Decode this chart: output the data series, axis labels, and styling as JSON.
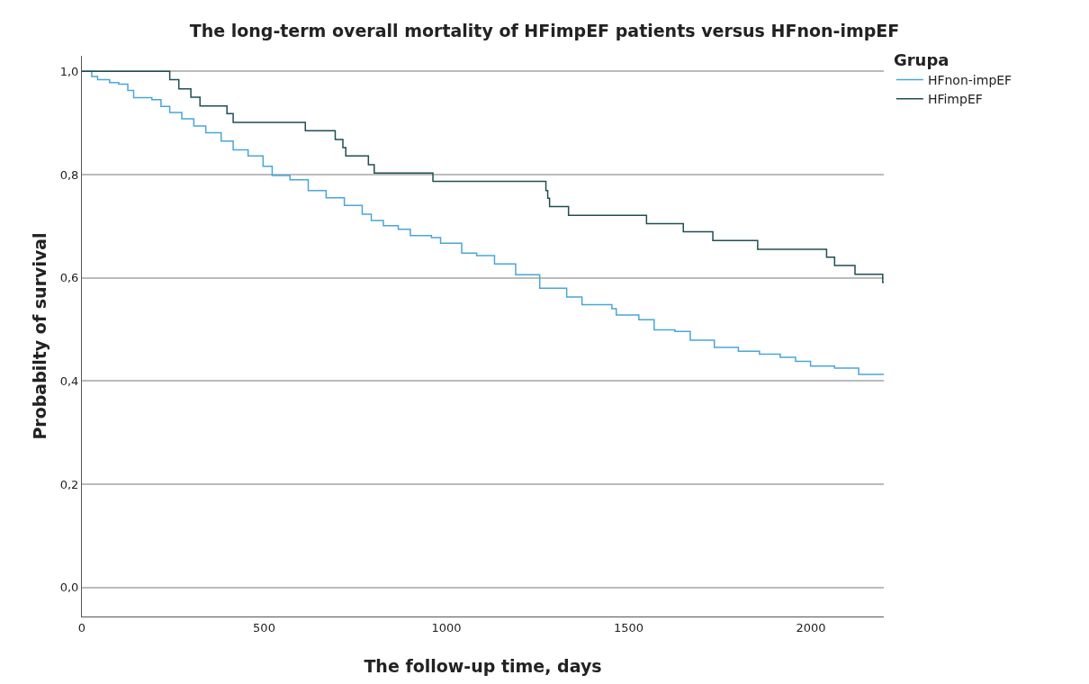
{
  "chart_data": {
    "type": "step",
    "title": "The long-term overall mortality of HFimpEF patients versus HFnon-impEF",
    "xlabel": "The follow-up time, days",
    "ylabel": "Probabilty of survival",
    "legend_title": "Grupa",
    "legend": "top right",
    "grid": "y",
    "marker": "none",
    "line_style": "solid",
    "xlim": [
      0,
      2200
    ],
    "xticks": [
      0,
      500,
      1000,
      1500,
      2000
    ],
    "ylim": [
      -0.056,
      1.03
    ],
    "yticks": [
      {
        "value": 0,
        "label": "0,0"
      },
      {
        "value": 0.2,
        "label": "0,2"
      },
      {
        "value": 0.4,
        "label": "0,4"
      },
      {
        "value": 0.6,
        "label": "0,6"
      },
      {
        "value": 0.8,
        "label": "0,8"
      },
      {
        "value": 1,
        "label": "1,0"
      }
    ],
    "series": [
      {
        "name": "HFnon-impEF",
        "color": "#4aa6d6",
        "x": [
          0,
          27,
          43,
          76,
          101,
          126,
          142,
          192,
          217,
          241,
          274,
          307,
          340,
          382,
          415,
          456,
          497,
          522,
          571,
          621,
          670,
          720,
          769,
          794,
          827,
          868,
          901,
          959,
          984,
          1042,
          1083,
          1132,
          1190,
          1256,
          1330,
          1372,
          1454,
          1466,
          1528,
          1570,
          1627,
          1669,
          1735,
          1801,
          1859,
          1916,
          1958,
          1999,
          2065,
          2131,
          2200
        ],
        "values": [
          1,
          0.99,
          0.984,
          0.978,
          0.975,
          0.963,
          0.949,
          0.945,
          0.932,
          0.92,
          0.908,
          0.894,
          0.881,
          0.865,
          0.848,
          0.836,
          0.816,
          0.798,
          0.79,
          0.769,
          0.755,
          0.74,
          0.723,
          0.711,
          0.701,
          0.694,
          0.682,
          0.678,
          0.667,
          0.648,
          0.643,
          0.627,
          0.606,
          0.58,
          0.563,
          0.548,
          0.54,
          0.528,
          0.519,
          0.499,
          0.496,
          0.479,
          0.465,
          0.458,
          0.452,
          0.446,
          0.438,
          0.429,
          0.425,
          0.413,
          0.413
        ]
      },
      {
        "name": "HFimpEF",
        "color": "#1f4f52",
        "x": [
          0,
          241,
          266,
          299,
          324,
          398,
          415,
          613,
          695,
          716,
          724,
          786,
          802,
          963,
          1273,
          1278,
          1283,
          1335,
          1549,
          1650,
          1731,
          1854,
          2043,
          2065,
          2121,
          2197,
          2200
        ],
        "values": [
          1,
          0.984,
          0.966,
          0.95,
          0.933,
          0.918,
          0.901,
          0.885,
          0.868,
          0.852,
          0.836,
          0.819,
          0.803,
          0.787,
          0.769,
          0.754,
          0.738,
          0.721,
          0.705,
          0.689,
          0.672,
          0.655,
          0.64,
          0.624,
          0.607,
          0.591,
          0.591
        ]
      }
    ]
  }
}
